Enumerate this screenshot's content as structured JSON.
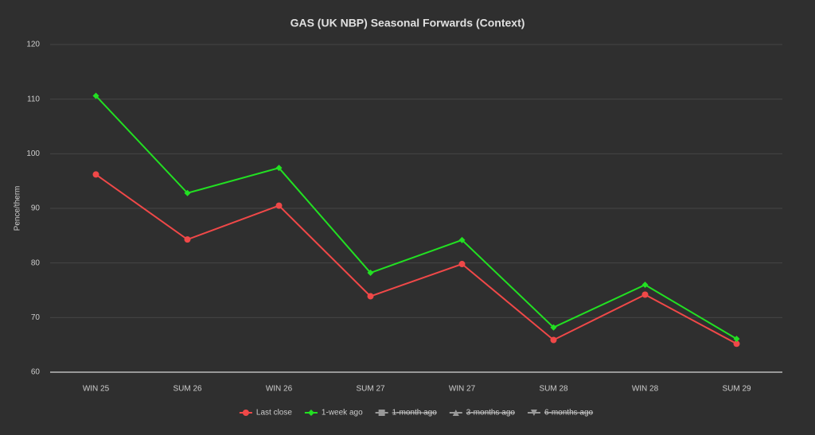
{
  "chart_data": {
    "type": "line",
    "title": "GAS (UK NBP) Seasonal Forwards (Context)",
    "y_label": "Pence/therm",
    "categories": [
      "WIN 25",
      "SUM 26",
      "WIN 26",
      "SUM 27",
      "WIN 27",
      "SUM 28",
      "WIN 28",
      "SUM 29"
    ],
    "series": [
      {
        "name": "Last close",
        "color": "#f04848",
        "marker": "circle",
        "hidden": false,
        "values": [
          96.2,
          84.3,
          90.5,
          73.9,
          79.8,
          65.9,
          74.2,
          65.2
        ]
      },
      {
        "name": "1-week ago",
        "color": "#22e022",
        "marker": "diamond",
        "hidden": false,
        "values": [
          110.6,
          92.8,
          97.4,
          78.2,
          84.2,
          68.2,
          76.0,
          66.1
        ]
      },
      {
        "name": "1-month ago",
        "color": "#999999",
        "marker": "square",
        "hidden": true,
        "values": [
          null,
          null,
          null,
          null,
          null,
          null,
          null,
          null
        ]
      },
      {
        "name": "3-months ago",
        "color": "#999999",
        "marker": "triangle",
        "hidden": true,
        "values": [
          null,
          null,
          null,
          null,
          null,
          null,
          null,
          null
        ]
      },
      {
        "name": "6-months ago",
        "color": "#999999",
        "marker": "triangle-down",
        "hidden": true,
        "values": [
          null,
          null,
          null,
          null,
          null,
          null,
          null,
          null
        ]
      }
    ],
    "ylim": [
      60,
      120
    ],
    "yticks": [
      60,
      70,
      80,
      90,
      100,
      110,
      120
    ],
    "grid": true,
    "legend": "bottom"
  }
}
